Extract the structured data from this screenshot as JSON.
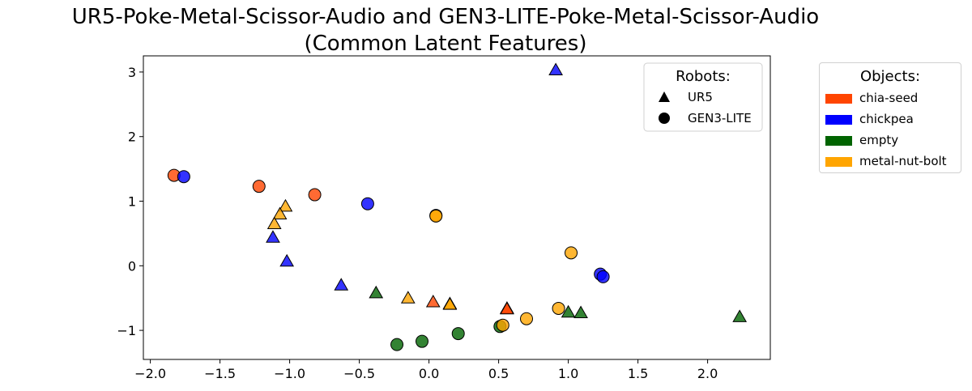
{
  "chart_data": {
    "type": "scatter",
    "title": [
      "UR5-Poke-Metal-Scissor-Audio and GEN3-LITE-Poke-Metal-Scissor-Audio",
      "(Common Latent Features)"
    ],
    "xlabel": "",
    "ylabel": "",
    "xlim": [
      -2.05,
      2.45
    ],
    "ylim": [
      -1.45,
      3.25
    ],
    "xticks": [
      -2.0,
      -1.5,
      -1.0,
      -0.5,
      0.0,
      0.5,
      1.0,
      1.5,
      2.0
    ],
    "xtick_labels": [
      "−2.0",
      "−1.5",
      "−1.0",
      "−0.5",
      "0.0",
      "0.5",
      "1.0",
      "1.5",
      "2.0"
    ],
    "yticks": [
      -1,
      0,
      1,
      2,
      3
    ],
    "ytick_labels": [
      "−1",
      "0",
      "1",
      "2",
      "3"
    ],
    "grid": false,
    "legend_robots": {
      "title": "Robots:",
      "placement": "upper-right-inside",
      "entries": [
        {
          "label": "UR5",
          "marker": "triangle"
        },
        {
          "label": "GEN3-LITE",
          "marker": "circle"
        }
      ]
    },
    "legend_objects": {
      "title": "Objects:",
      "placement": "outside-right",
      "entries": [
        {
          "label": "chia-seed",
          "color": "#ff4500"
        },
        {
          "label": "chickpea",
          "color": "#0000ff"
        },
        {
          "label": "empty",
          "color": "#006400"
        },
        {
          "label": "metal-nut-bolt",
          "color": "#ffa500"
        }
      ]
    },
    "series": [
      {
        "robot": "UR5",
        "object": "chia-seed",
        "marker": "triangle",
        "color": "#ff4500",
        "x": [
          0.03,
          0.56,
          0.56
        ],
        "y": [
          -0.56,
          -0.66,
          -0.67
        ]
      },
      {
        "robot": "UR5",
        "object": "chickpea",
        "marker": "triangle",
        "color": "#0000ff",
        "x": [
          0.91,
          -1.12,
          -1.02,
          -0.63
        ],
        "y": [
          3.03,
          0.44,
          0.07,
          -0.3
        ]
      },
      {
        "robot": "UR5",
        "object": "empty",
        "marker": "triangle",
        "color": "#006400",
        "x": [
          -0.38,
          1.0,
          1.09,
          2.23
        ],
        "y": [
          -0.42,
          -0.72,
          -0.73,
          -0.79
        ]
      },
      {
        "robot": "UR5",
        "object": "metal-nut-bolt",
        "marker": "triangle",
        "color": "#ffa500",
        "x": [
          -1.03,
          -1.07,
          -1.11,
          -0.15,
          0.15,
          0.15
        ],
        "y": [
          0.92,
          0.8,
          0.65,
          -0.5,
          -0.59,
          -0.6
        ]
      },
      {
        "robot": "GEN3-LITE",
        "object": "chia-seed",
        "marker": "circle",
        "color": "#ff4500",
        "x": [
          -1.83,
          -1.22,
          -0.82
        ],
        "y": [
          1.4,
          1.23,
          1.1
        ]
      },
      {
        "robot": "GEN3-LITE",
        "object": "chickpea",
        "marker": "circle",
        "color": "#0000ff",
        "x": [
          -1.76,
          -0.44,
          1.23,
          1.25
        ],
        "y": [
          1.38,
          0.96,
          -0.13,
          -0.17
        ]
      },
      {
        "robot": "GEN3-LITE",
        "object": "empty",
        "marker": "circle",
        "color": "#006400",
        "x": [
          -0.23,
          -0.05,
          0.21,
          0.51
        ],
        "y": [
          -1.22,
          -1.17,
          -1.05,
          -0.94
        ]
      },
      {
        "robot": "GEN3-LITE",
        "object": "metal-nut-bolt",
        "marker": "circle",
        "color": "#ffa500",
        "x": [
          0.05,
          0.05,
          1.02,
          0.93,
          0.7,
          0.53
        ],
        "y": [
          0.78,
          0.77,
          0.2,
          -0.66,
          -0.82,
          -0.92
        ]
      }
    ]
  }
}
